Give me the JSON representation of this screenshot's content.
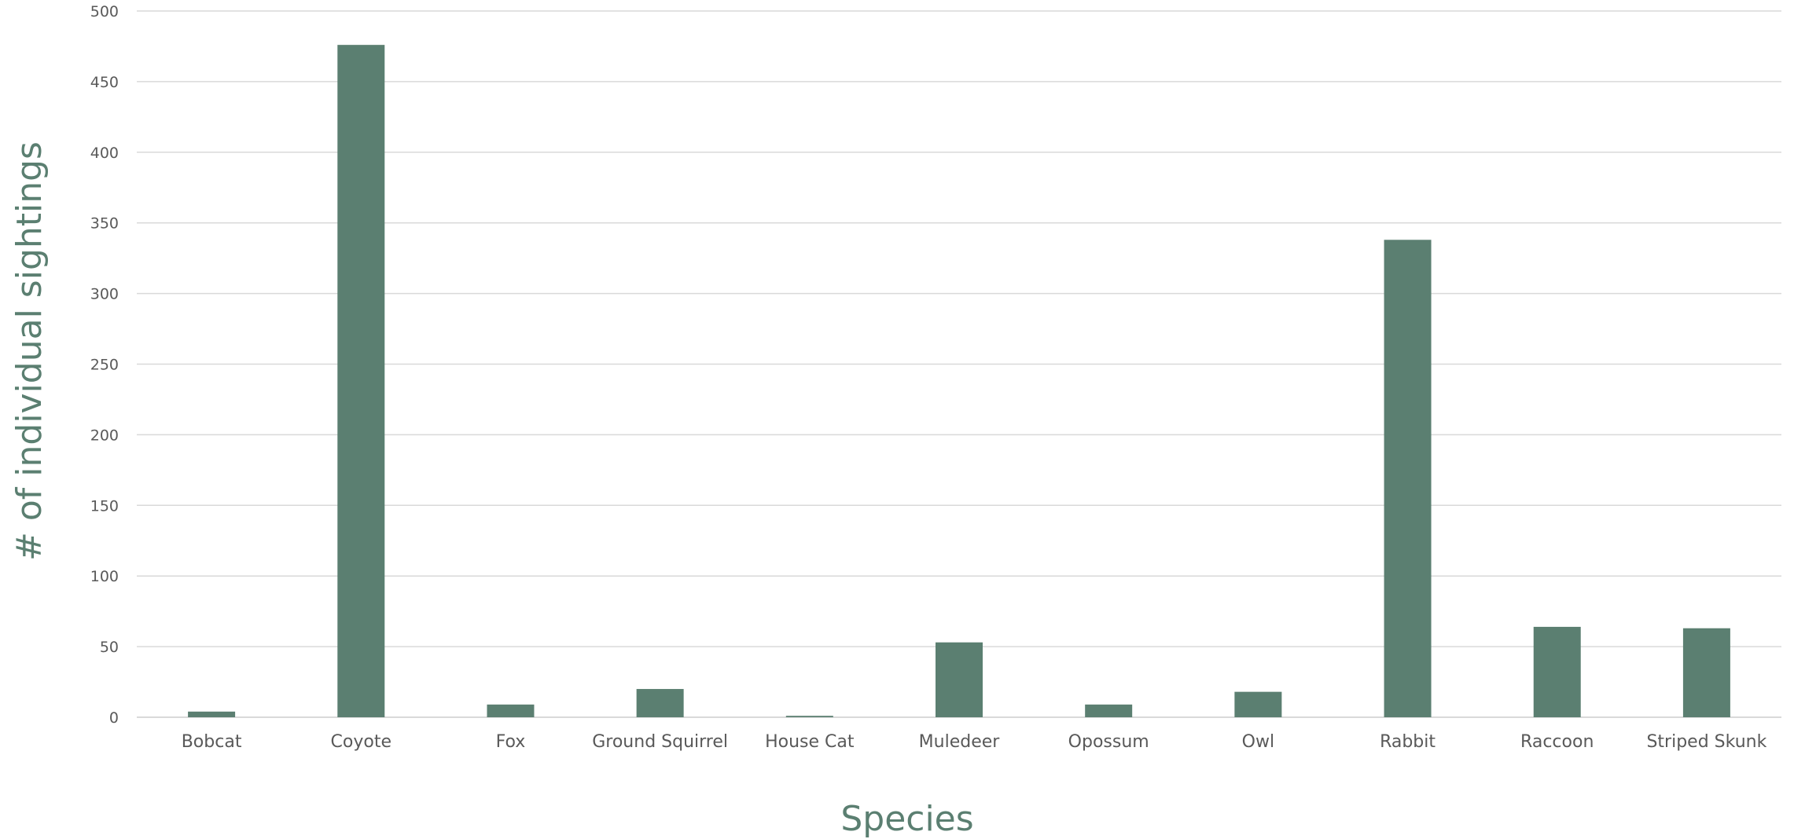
{
  "colors": {
    "bar": "#5b7f71",
    "axis_title": "#5b7f71",
    "gridline": "#d9d9d9",
    "tick_text": "#595959"
  },
  "chart_data": {
    "type": "bar",
    "categories": [
      "Bobcat",
      "Coyote",
      "Fox",
      "Ground Squirrel",
      "House Cat",
      "Muledeer",
      "Opossum",
      "Owl",
      "Rabbit",
      "Raccoon",
      "Striped Skunk"
    ],
    "values": [
      4,
      476,
      9,
      20,
      1,
      53,
      9,
      18,
      338,
      64,
      63
    ],
    "xlabel": "Species",
    "ylabel": "# of individual sightings",
    "ylim": [
      0,
      500
    ],
    "yticks": [
      0,
      50,
      100,
      150,
      200,
      250,
      300,
      350,
      400,
      450,
      500
    ],
    "grid": true,
    "legend": "none"
  }
}
